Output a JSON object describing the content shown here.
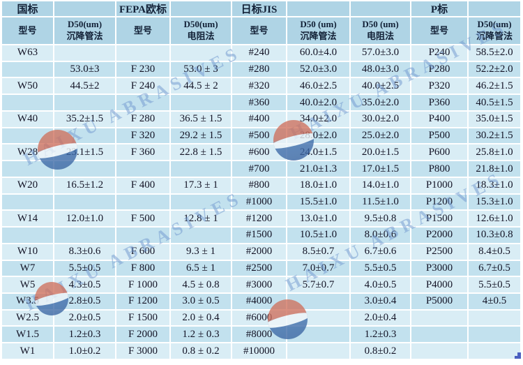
{
  "watermark": {
    "text": "HAIXU ABRASIVES"
  },
  "colors": {
    "header_bg": "#afd4e5",
    "row_light": "#d9edf5",
    "row_dark": "#c2e1ee",
    "grid_line": "#ffffff",
    "text": "#131325",
    "watermark_blue": "#6e96cd",
    "logo_red": "#cf6f5c",
    "logo_blue": "#3e6dab",
    "handle_blue": "#4a5fc0"
  },
  "table": {
    "group_row": [
      "国标",
      "",
      "FEPA欧标",
      "",
      "日标JIS",
      "",
      "",
      "P标",
      ""
    ],
    "columns": [
      "型号",
      "D50(um)\n沉降管法",
      "型号",
      "D50(um)\n电阻法",
      "型号",
      "D50 (um)\n沉降管法",
      "D50 (um)\n电阻法",
      "型号",
      "D50(um)\n沉降管法"
    ],
    "rows": [
      [
        "W63",
        "",
        "",
        "",
        "#240",
        "60.0±4.0",
        "57.0±3.0",
        "P240",
        "58.5±2.0"
      ],
      [
        "",
        "53.0±3",
        "F 230",
        "53.0 ± 3",
        "#280",
        "52.0±3.0",
        "48.0±3.0",
        "P280",
        "52.2±2.0"
      ],
      [
        "W50",
        "44.5±2",
        "F 240",
        "44.5 ± 2",
        "#320",
        "46.0±2.5",
        "40.0±2.5",
        "P320",
        "46.2±1.5"
      ],
      [
        "",
        "",
        "",
        "",
        "#360",
        "40.0±2.0",
        "35.0±2.0",
        "P360",
        "40.5±1.5"
      ],
      [
        "W40",
        "35.2±1.5",
        "F 280",
        "36.5 ± 1.5",
        "#400",
        "34.0±2.0",
        "30.0±2.0",
        "P400",
        "35.0±1.5"
      ],
      [
        "",
        "",
        "F 320",
        "29.2 ± 1.5",
        "#500",
        "28.0±2.0",
        "25.0±2.0",
        "P500",
        "30.2±1.5"
      ],
      [
        "W28",
        "23.1±1.5",
        "F 360",
        "22.8 ± 1.5",
        "#600",
        "24.0±1.5",
        "20.0±1.5",
        "P600",
        "25.8±1.0"
      ],
      [
        "",
        "",
        "",
        "",
        "#700",
        "21.0±1.3",
        "17.0±1.5",
        "P800",
        "21.8±1.0"
      ],
      [
        "W20",
        "16.5±1.2",
        "F 400",
        "17.3 ± 1",
        "#800",
        "18.0±1.0",
        "14.0±1.0",
        "P1000",
        "18.3±1.0"
      ],
      [
        "",
        "",
        "",
        "",
        "#1000",
        "15.5±1.0",
        "11.5±1.0",
        "P1200",
        "15.3±1.0"
      ],
      [
        "W14",
        "12.0±1.0",
        "F 500",
        "12.8 ± 1",
        "#1200",
        "13.0±1.0",
        "9.5±0.8",
        "P1500",
        "12.6±1.0"
      ],
      [
        "",
        "",
        "",
        "",
        "#1500",
        "10.5±1.0",
        "8.0±0.6",
        "P2000",
        "10.3±0.8"
      ],
      [
        "W10",
        "8.3±0.6",
        "F 600",
        "9.3 ± 1",
        "#2000",
        "8.5±0.7",
        "6.7±0.6",
        "P2500",
        "8.4±0.5"
      ],
      [
        "W7",
        "5.5±0.5",
        "F 800",
        "6.5 ± 1",
        "#2500",
        "7.0±0.7",
        "5.5±0.5",
        "P3000",
        "6.7±0.5"
      ],
      [
        "W5",
        "4.3±0.5",
        "F 1000",
        "4.5 ± 0.8",
        "#3000",
        "5.7±0.7",
        "4.0±0.5",
        "P4000",
        "5.5±0.5"
      ],
      [
        "W3.5",
        "2.8±0.5",
        "F 1200",
        "3.0 ± 0.5",
        "#4000",
        "",
        "3.0±0.4",
        "P5000",
        "4±0.5"
      ],
      [
        "W2.5",
        "2.0±0.5",
        "F 1500",
        "2.0 ± 0.4",
        "#6000",
        "",
        "2.0±0.4",
        "",
        ""
      ],
      [
        "W1.5",
        "1.2±0.3",
        "F 2000",
        "1.2 ± 0.3",
        "#8000",
        "",
        "1.2±0.3",
        "",
        ""
      ],
      [
        "W1",
        "1.0±0.2",
        "F 3000",
        "0.8 ± 0.2",
        "#10000",
        "",
        "0.8±0.2",
        "",
        ""
      ]
    ]
  }
}
